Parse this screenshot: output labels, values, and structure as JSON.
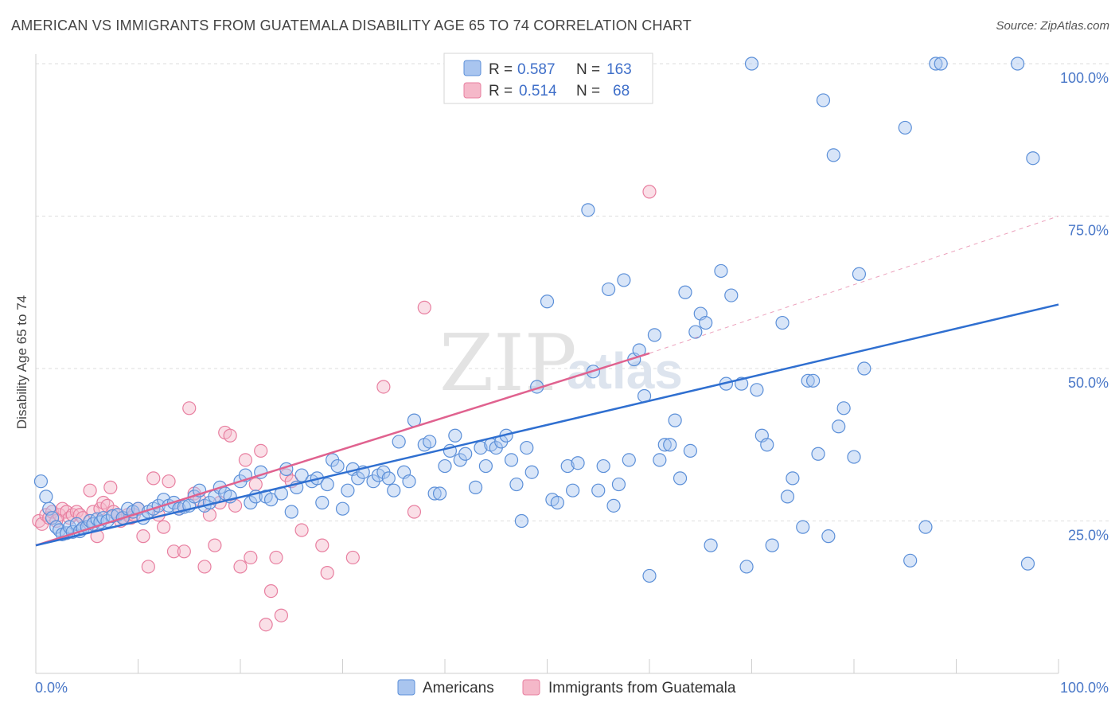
{
  "title": "AMERICAN VS IMMIGRANTS FROM GUATEMALA DISABILITY AGE 65 TO 74 CORRELATION CHART",
  "source": "Source: ZipAtlas.com",
  "colors": {
    "blue_fill": "#a9c5ef",
    "blue_stroke": "#5b8fd8",
    "blue_line": "#2f6fd0",
    "pink_fill": "#f5b8c9",
    "pink_stroke": "#e87fa0",
    "pink_line": "#e0628f",
    "axis_label": "#4a78c8"
  },
  "legend_stats": [
    {
      "r_label": "R = ",
      "r_value": "0.587",
      "n_label": "N = ",
      "n_value": "163"
    },
    {
      "r_label": "R = ",
      "r_value": "0.514",
      "n_label": "N = ",
      "n_value": "68"
    }
  ],
  "watermark": {
    "zip": "ZIP",
    "atlas": "atlas"
  },
  "chart_data": {
    "type": "scatter",
    "title": "AMERICAN VS IMMIGRANTS FROM GUATEMALA DISABILITY AGE 65 TO 74 CORRELATION CHART",
    "xlabel": "",
    "ylabel": "Disability Age 65 to 74",
    "xlim": [
      0,
      100
    ],
    "ylim": [
      0,
      100
    ],
    "x_tick_labels": [
      "0.0%",
      "100.0%"
    ],
    "y_tick_labels": [
      "25.0%",
      "50.0%",
      "75.0%",
      "100.0%"
    ],
    "y_ticks": [
      25,
      50,
      75,
      100
    ],
    "grid": true,
    "legend_position": "bottom",
    "series": [
      {
        "name": "Americans",
        "color": "#5b8fd8",
        "trend": {
          "x": [
            0,
            100
          ],
          "y": [
            21,
            60.5
          ]
        },
        "points": [
          [
            0.5,
            31.5
          ],
          [
            1,
            29
          ],
          [
            1.3,
            27
          ],
          [
            1.6,
            25.5
          ],
          [
            2,
            24
          ],
          [
            2.3,
            23.5
          ],
          [
            2.6,
            22.8
          ],
          [
            3,
            23
          ],
          [
            3.3,
            24
          ],
          [
            3.6,
            23.2
          ],
          [
            4,
            24.5
          ],
          [
            4.3,
            23.3
          ],
          [
            4.6,
            23.8
          ],
          [
            5,
            24
          ],
          [
            5.3,
            25
          ],
          [
            5.6,
            24.5
          ],
          [
            6,
            25.3
          ],
          [
            6.3,
            24.8
          ],
          [
            6.6,
            25.5
          ],
          [
            7,
            25
          ],
          [
            7.5,
            25.8
          ],
          [
            8,
            26
          ],
          [
            8.5,
            25.5
          ],
          [
            9,
            27
          ],
          [
            9.5,
            26.5
          ],
          [
            10,
            27
          ],
          [
            10.5,
            25.5
          ],
          [
            11,
            26.5
          ],
          [
            11.5,
            27
          ],
          [
            12,
            27.5
          ],
          [
            12.5,
            28.5
          ],
          [
            13,
            27.5
          ],
          [
            13.5,
            28
          ],
          [
            14,
            27
          ],
          [
            14.5,
            27.3
          ],
          [
            15,
            27.5
          ],
          [
            15.5,
            29
          ],
          [
            16,
            30
          ],
          [
            16.5,
            27.5
          ],
          [
            17,
            28
          ],
          [
            17.5,
            29
          ],
          [
            18,
            30.5
          ],
          [
            18.5,
            29.5
          ],
          [
            19,
            29
          ],
          [
            20,
            31.5
          ],
          [
            20.5,
            32.5
          ],
          [
            21,
            28
          ],
          [
            21.5,
            29
          ],
          [
            22,
            33
          ],
          [
            22.5,
            29
          ],
          [
            23,
            28.5
          ],
          [
            24,
            29.5
          ],
          [
            24.5,
            33.5
          ],
          [
            25,
            26.5
          ],
          [
            25.5,
            30.5
          ],
          [
            26,
            32.5
          ],
          [
            27,
            31.5
          ],
          [
            27.5,
            32
          ],
          [
            28,
            28
          ],
          [
            28.5,
            31
          ],
          [
            29,
            35
          ],
          [
            29.5,
            34
          ],
          [
            30,
            27
          ],
          [
            30.5,
            30
          ],
          [
            31,
            33.5
          ],
          [
            31.5,
            32
          ],
          [
            32,
            33
          ],
          [
            33,
            31.5
          ],
          [
            33.5,
            32.5
          ],
          [
            34,
            33
          ],
          [
            34.5,
            32
          ],
          [
            35,
            30
          ],
          [
            35.5,
            38
          ],
          [
            36,
            33
          ],
          [
            36.5,
            31.5
          ],
          [
            37,
            41.5
          ],
          [
            38,
            37.5
          ],
          [
            38.5,
            38
          ],
          [
            39,
            29.5
          ],
          [
            39.5,
            29.5
          ],
          [
            40,
            34
          ],
          [
            40.5,
            36.5
          ],
          [
            41,
            39
          ],
          [
            41.5,
            35
          ],
          [
            42,
            36
          ],
          [
            43,
            30.5
          ],
          [
            43.5,
            37
          ],
          [
            44,
            34
          ],
          [
            44.5,
            37.5
          ],
          [
            45,
            37
          ],
          [
            45.5,
            38
          ],
          [
            46,
            39
          ],
          [
            46.5,
            35
          ],
          [
            47,
            31
          ],
          [
            47.5,
            25
          ],
          [
            48,
            37
          ],
          [
            48.5,
            33
          ],
          [
            49,
            47
          ],
          [
            50,
            61
          ],
          [
            50.5,
            28.5
          ],
          [
            51,
            28
          ],
          [
            52,
            34
          ],
          [
            52.5,
            30
          ],
          [
            53,
            34.5
          ],
          [
            54,
            76
          ],
          [
            54.5,
            49.5
          ],
          [
            55,
            30
          ],
          [
            55.5,
            34
          ],
          [
            56,
            63
          ],
          [
            56.5,
            27.5
          ],
          [
            57,
            31
          ],
          [
            57.5,
            64.5
          ],
          [
            58,
            35
          ],
          [
            58.5,
            51.5
          ],
          [
            59,
            53
          ],
          [
            59.5,
            45.5
          ],
          [
            60,
            16
          ],
          [
            60.5,
            55.5
          ],
          [
            61,
            35
          ],
          [
            61.5,
            37.5
          ],
          [
            62,
            37.5
          ],
          [
            62.5,
            41.5
          ],
          [
            63,
            32
          ],
          [
            63.5,
            62.5
          ],
          [
            64,
            36.5
          ],
          [
            64.5,
            56
          ],
          [
            65,
            59
          ],
          [
            65.5,
            57.5
          ],
          [
            66,
            21
          ],
          [
            67,
            66
          ],
          [
            67.5,
            47.5
          ],
          [
            68,
            62
          ],
          [
            69,
            47.5
          ],
          [
            69.5,
            17.5
          ],
          [
            70,
            100
          ],
          [
            70.5,
            46.5
          ],
          [
            71,
            39
          ],
          [
            71.5,
            37.5
          ],
          [
            72,
            21
          ],
          [
            73,
            57.5
          ],
          [
            73.5,
            29
          ],
          [
            74,
            32
          ],
          [
            75,
            24
          ],
          [
            75.5,
            48
          ],
          [
            76,
            48
          ],
          [
            76.5,
            36
          ],
          [
            77,
            94
          ],
          [
            77.5,
            22.5
          ],
          [
            78,
            85
          ],
          [
            78.5,
            40.5
          ],
          [
            79,
            43.5
          ],
          [
            80,
            35.5
          ],
          [
            80.5,
            65.5
          ],
          [
            81,
            50
          ],
          [
            85,
            89.5
          ],
          [
            85.5,
            18.5
          ],
          [
            87,
            24
          ],
          [
            88,
            100
          ],
          [
            88.5,
            100
          ],
          [
            96,
            100
          ],
          [
            97,
            18
          ],
          [
            97.5,
            84.5
          ]
        ]
      },
      {
        "name": "Immigrants from Guatemala",
        "color": "#e87fa0",
        "trend": {
          "x": [
            0,
            60
          ],
          "y": [
            21,
            52.5
          ]
        },
        "dashed_extension": {
          "x": [
            60,
            100
          ],
          "y": [
            52.5,
            75
          ]
        },
        "points": [
          [
            0.3,
            25
          ],
          [
            0.6,
            24.5
          ],
          [
            1,
            26
          ],
          [
            1.3,
            25.5
          ],
          [
            1.6,
            26.5
          ],
          [
            2,
            25
          ],
          [
            2.3,
            26
          ],
          [
            2.6,
            27
          ],
          [
            3,
            26.5
          ],
          [
            3.3,
            25.5
          ],
          [
            3.6,
            26
          ],
          [
            4,
            26.5
          ],
          [
            4.3,
            26
          ],
          [
            4.6,
            25.5
          ],
          [
            5,
            24
          ],
          [
            5.3,
            30
          ],
          [
            5.6,
            26.5
          ],
          [
            6,
            22.5
          ],
          [
            6.3,
            27
          ],
          [
            6.6,
            28
          ],
          [
            7,
            27.5
          ],
          [
            7.3,
            30.5
          ],
          [
            7.6,
            26.5
          ],
          [
            8,
            26
          ],
          [
            8.3,
            25
          ],
          [
            8.6,
            25.5
          ],
          [
            9,
            26
          ],
          [
            9.3,
            25.5
          ],
          [
            9.6,
            26
          ],
          [
            10,
            27
          ],
          [
            10.5,
            22.5
          ],
          [
            11,
            17.5
          ],
          [
            11.5,
            32
          ],
          [
            12,
            26
          ],
          [
            12.5,
            24
          ],
          [
            13,
            31.5
          ],
          [
            13.5,
            20
          ],
          [
            14,
            27
          ],
          [
            14.5,
            20
          ],
          [
            15,
            43.5
          ],
          [
            15.5,
            29.5
          ],
          [
            16,
            28.5
          ],
          [
            16.5,
            17.5
          ],
          [
            17,
            26
          ],
          [
            17.5,
            21
          ],
          [
            18,
            28
          ],
          [
            18.5,
            39.5
          ],
          [
            19,
            39
          ],
          [
            19.5,
            27.5
          ],
          [
            20,
            17.5
          ],
          [
            20.5,
            35
          ],
          [
            21,
            19
          ],
          [
            21.5,
            31
          ],
          [
            22,
            36.5
          ],
          [
            22.5,
            8
          ],
          [
            23,
            13.5
          ],
          [
            23.5,
            19
          ],
          [
            24,
            9.5
          ],
          [
            24.5,
            32.5
          ],
          [
            25,
            31.5
          ],
          [
            26,
            23.5
          ],
          [
            28,
            21
          ],
          [
            28.5,
            16.5
          ],
          [
            31,
            19
          ],
          [
            34,
            47
          ],
          [
            37,
            26.5
          ],
          [
            38,
            60
          ],
          [
            60,
            79
          ]
        ]
      }
    ]
  }
}
